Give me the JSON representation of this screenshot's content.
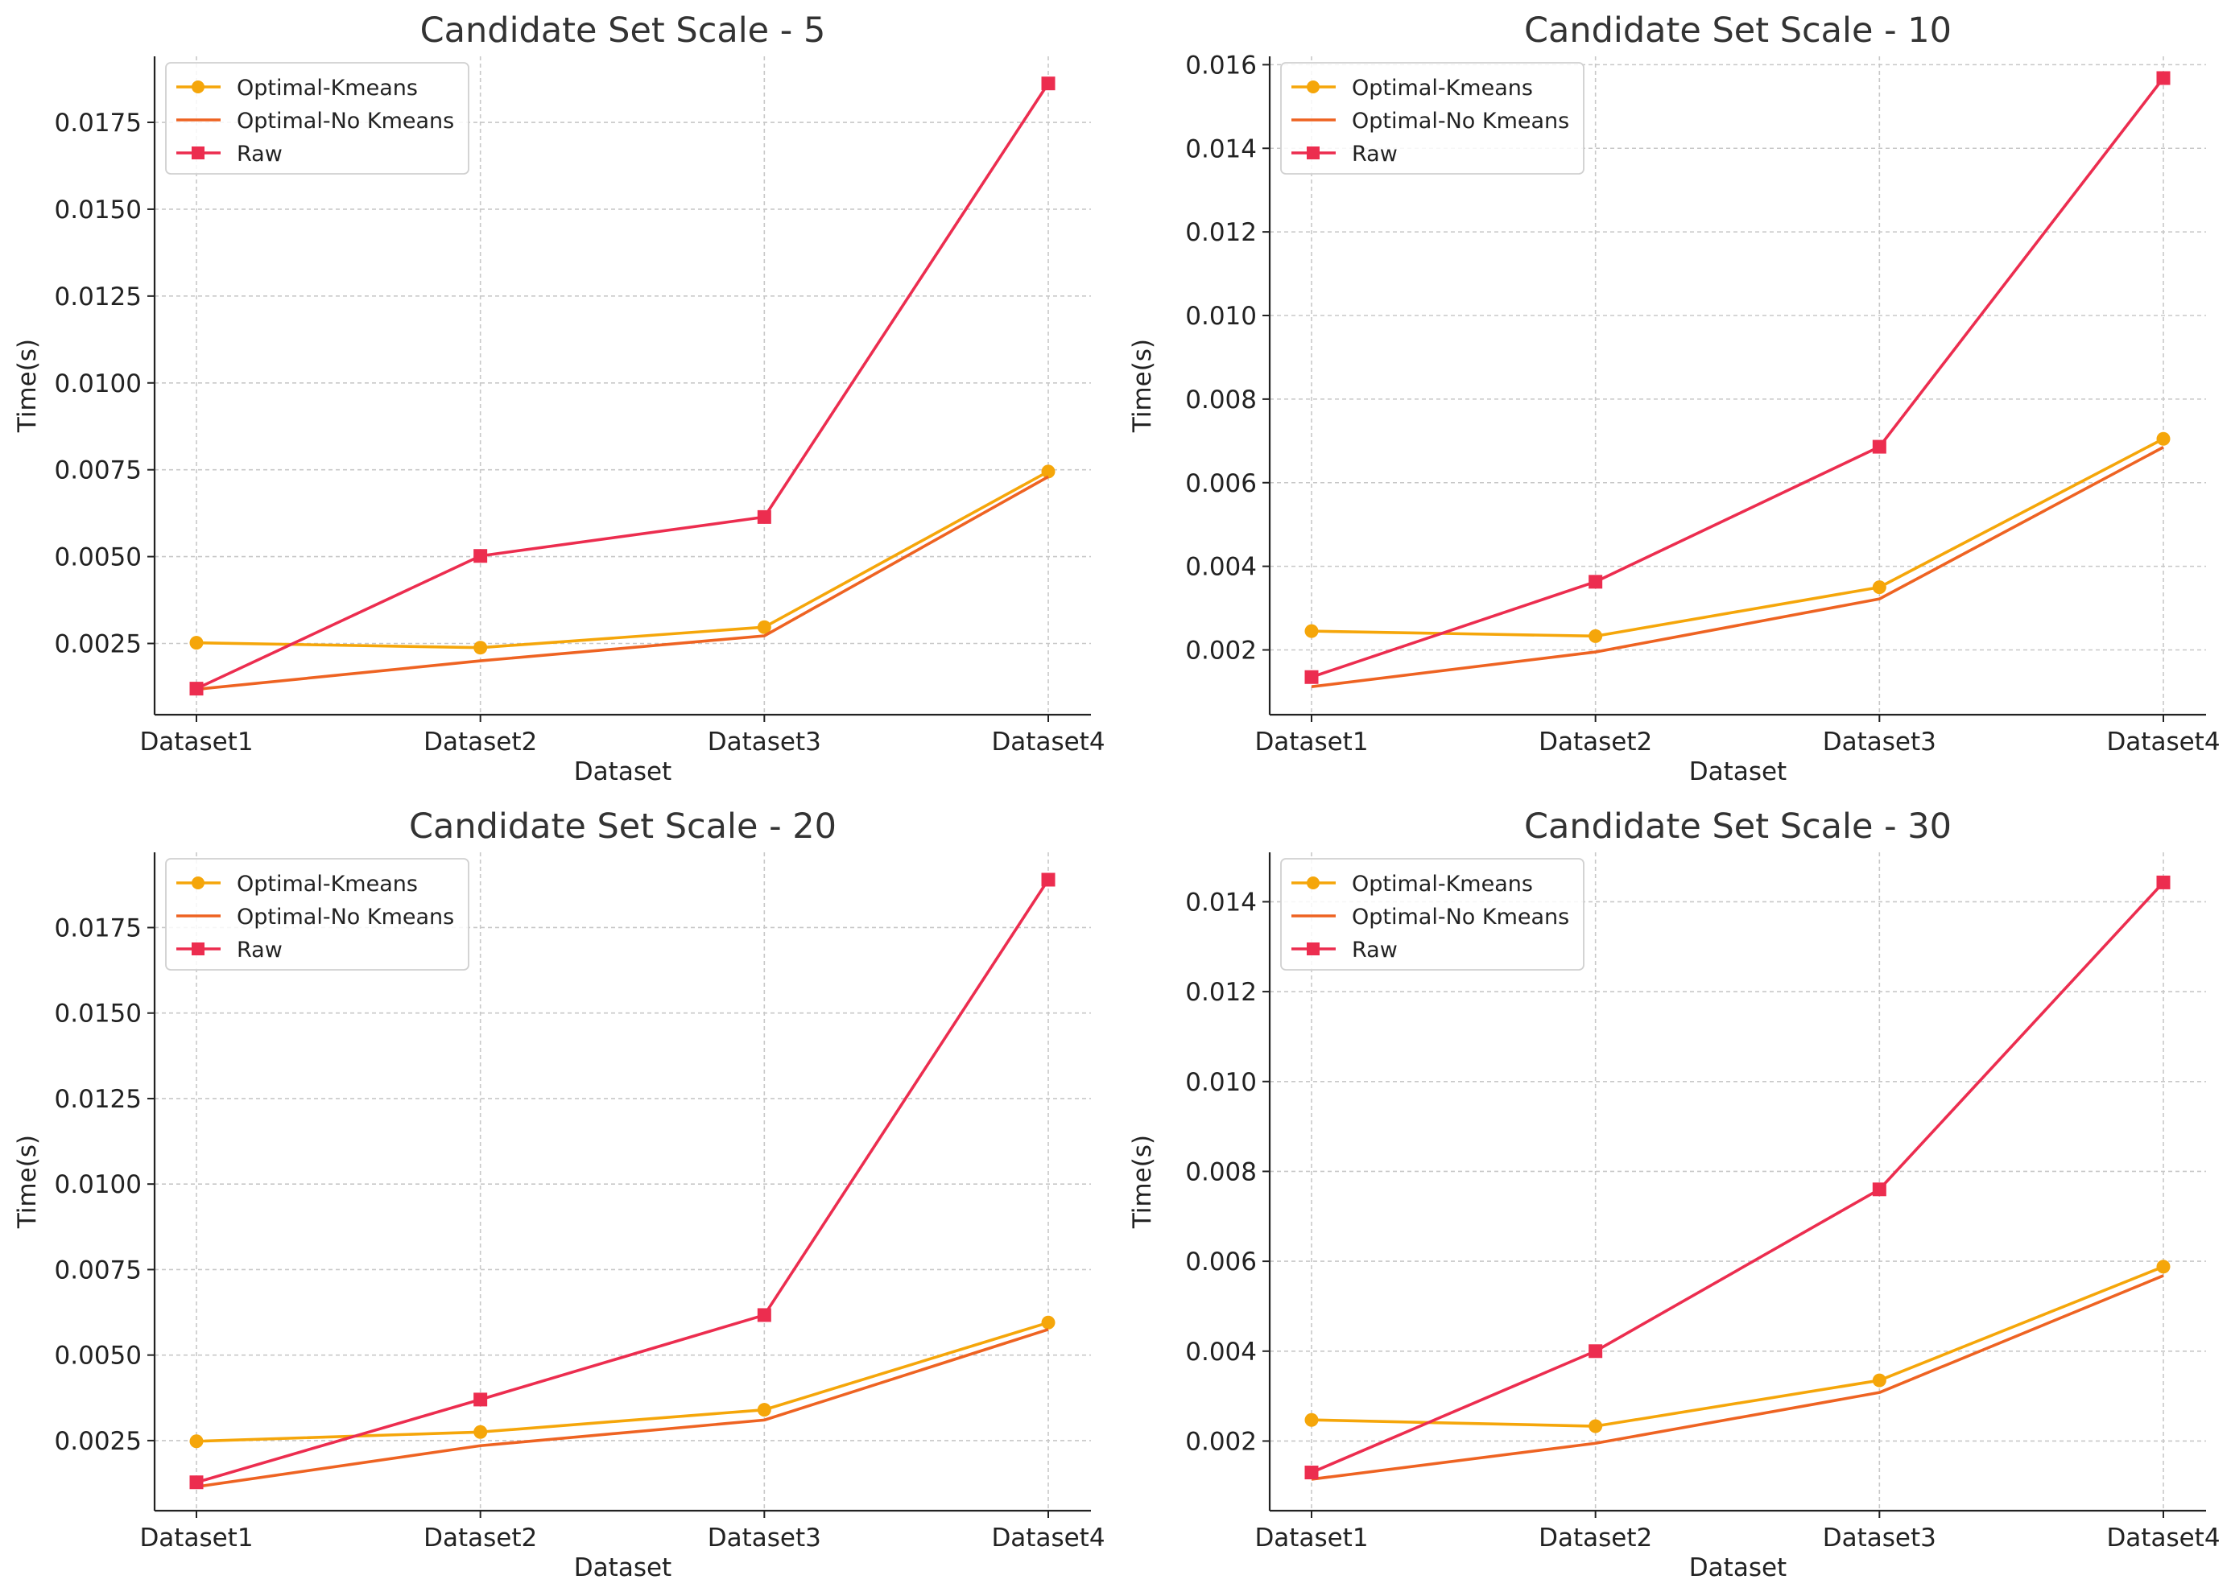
{
  "colors": {
    "optimal_kmeans": "#F5A60A",
    "optimal_no_kmeans": "#EE6322",
    "raw": "#EC2D4F",
    "grid": "#C8C8C8",
    "axis": "#222222",
    "text": "#222222",
    "title": "#333333"
  },
  "chart_data": [
    {
      "type": "line",
      "title": "Candidate Set Scale - 5",
      "xlabel": "Dataset",
      "ylabel": "Time(s)",
      "categories": [
        "Dataset1",
        "Dataset2",
        "Dataset3",
        "Dataset4"
      ],
      "ylim": [
        0.00045,
        0.0194
      ],
      "yticks": [
        0.0025,
        0.005,
        0.0075,
        0.01,
        0.0125,
        0.015,
        0.0175
      ],
      "ytick_labels": [
        "0.0025",
        "0.0050",
        "0.0075",
        "0.0100",
        "0.0125",
        "0.0150",
        "0.0175"
      ],
      "grid": true,
      "legend": "top-left",
      "series": [
        {
          "name": "Optimal-Kmeans",
          "marker": "circle",
          "color_key": "optimal_kmeans",
          "values": [
            0.00252,
            0.00238,
            0.00297,
            0.00745
          ]
        },
        {
          "name": "Optimal-No Kmeans",
          "marker": "none",
          "color_key": "optimal_no_kmeans",
          "values": [
            0.00118,
            0.002,
            0.00272,
            0.0073
          ]
        },
        {
          "name": "Raw",
          "marker": "square",
          "color_key": "raw",
          "values": [
            0.0012,
            0.00502,
            0.00614,
            0.01862
          ]
        }
      ]
    },
    {
      "type": "line",
      "title": "Candidate Set Scale - 10",
      "xlabel": "Dataset",
      "ylabel": "Time(s)",
      "categories": [
        "Dataset1",
        "Dataset2",
        "Dataset3",
        "Dataset4"
      ],
      "ylim": [
        0.00045,
        0.0162
      ],
      "yticks": [
        0.002,
        0.004,
        0.006,
        0.008,
        0.01,
        0.012,
        0.014,
        0.016
      ],
      "ytick_labels": [
        "0.002",
        "0.004",
        "0.006",
        "0.008",
        "0.010",
        "0.012",
        "0.014",
        "0.016"
      ],
      "grid": true,
      "legend": "top-left",
      "series": [
        {
          "name": "Optimal-Kmeans",
          "marker": "circle",
          "color_key": "optimal_kmeans",
          "values": [
            0.00245,
            0.00233,
            0.0035,
            0.00705
          ]
        },
        {
          "name": "Optimal-No Kmeans",
          "marker": "none",
          "color_key": "optimal_no_kmeans",
          "values": [
            0.00112,
            0.00195,
            0.00322,
            0.00685
          ]
        },
        {
          "name": "Raw",
          "marker": "square",
          "color_key": "raw",
          "values": [
            0.00135,
            0.00363,
            0.00686,
            0.01568
          ]
        }
      ]
    },
    {
      "type": "line",
      "title": "Candidate Set Scale - 20",
      "xlabel": "Dataset",
      "ylabel": "Time(s)",
      "categories": [
        "Dataset1",
        "Dataset2",
        "Dataset3",
        "Dataset4"
      ],
      "ylim": [
        0.00045,
        0.0197
      ],
      "yticks": [
        0.0025,
        0.005,
        0.0075,
        0.01,
        0.0125,
        0.015,
        0.0175
      ],
      "ytick_labels": [
        "0.0025",
        "0.0050",
        "0.0075",
        "0.0100",
        "0.0125",
        "0.0150",
        "0.0175"
      ],
      "grid": true,
      "legend": "top-left",
      "series": [
        {
          "name": "Optimal-Kmeans",
          "marker": "circle",
          "color_key": "optimal_kmeans",
          "values": [
            0.00248,
            0.00275,
            0.0034,
            0.00595
          ]
        },
        {
          "name": "Optimal-No Kmeans",
          "marker": "none",
          "color_key": "optimal_no_kmeans",
          "values": [
            0.00115,
            0.00235,
            0.0031,
            0.00575
          ]
        },
        {
          "name": "Raw",
          "marker": "square",
          "color_key": "raw",
          "values": [
            0.00128,
            0.0037,
            0.00617,
            0.0189
          ]
        }
      ]
    },
    {
      "type": "line",
      "title": "Candidate Set Scale - 30",
      "xlabel": "Dataset",
      "ylabel": "Time(s)",
      "categories": [
        "Dataset1",
        "Dataset2",
        "Dataset3",
        "Dataset4"
      ],
      "ylim": [
        0.00045,
        0.0151
      ],
      "yticks": [
        0.002,
        0.004,
        0.006,
        0.008,
        0.01,
        0.012,
        0.014
      ],
      "ytick_labels": [
        "0.002",
        "0.004",
        "0.006",
        "0.008",
        "0.010",
        "0.012",
        "0.014"
      ],
      "grid": true,
      "legend": "top-left",
      "series": [
        {
          "name": "Optimal-Kmeans",
          "marker": "circle",
          "color_key": "optimal_kmeans",
          "values": [
            0.00247,
            0.00233,
            0.00335,
            0.00588
          ]
        },
        {
          "name": "Optimal-No Kmeans",
          "marker": "none",
          "color_key": "optimal_no_kmeans",
          "values": [
            0.00115,
            0.00195,
            0.00308,
            0.00568
          ]
        },
        {
          "name": "Raw",
          "marker": "square",
          "color_key": "raw",
          "values": [
            0.0013,
            0.004,
            0.0076,
            0.01443
          ]
        }
      ]
    }
  ]
}
